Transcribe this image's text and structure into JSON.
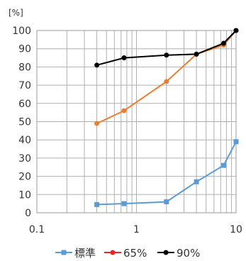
{
  "chart_data": {
    "type": "line",
    "x_scale": "log",
    "xlim": [
      0.1,
      10
    ],
    "ylim": [
      0,
      100
    ],
    "y_unit": "[%]",
    "grid": true,
    "legend_position": "bottom",
    "x_ticks": [
      "0.1",
      "1",
      "10"
    ],
    "y_ticks": [
      "0",
      "10",
      "20",
      "30",
      "40",
      "50",
      "60",
      "70",
      "80",
      "90",
      "100"
    ],
    "series": [
      {
        "name": "標準",
        "color": "#5b9bd5",
        "marker": "square",
        "points": [
          [
            0.4,
            4.5
          ],
          [
            0.75,
            5
          ],
          [
            2,
            6
          ],
          [
            4,
            17
          ],
          [
            7.5,
            26
          ],
          [
            10,
            39
          ]
        ]
      },
      {
        "name": "65%",
        "color": "#ed7d31",
        "legend_color": "#e8262a",
        "marker": "circle",
        "points": [
          [
            0.4,
            49
          ],
          [
            0.75,
            56
          ],
          [
            2,
            72
          ],
          [
            4,
            87
          ],
          [
            7.5,
            92
          ],
          [
            10,
            100
          ]
        ]
      },
      {
        "name": "90%",
        "color": "#000000",
        "marker": "circle",
        "points": [
          [
            0.4,
            81
          ],
          [
            0.75,
            85
          ],
          [
            2,
            86.5
          ],
          [
            4,
            87
          ],
          [
            7.5,
            93
          ],
          [
            10,
            100
          ]
        ]
      }
    ]
  }
}
